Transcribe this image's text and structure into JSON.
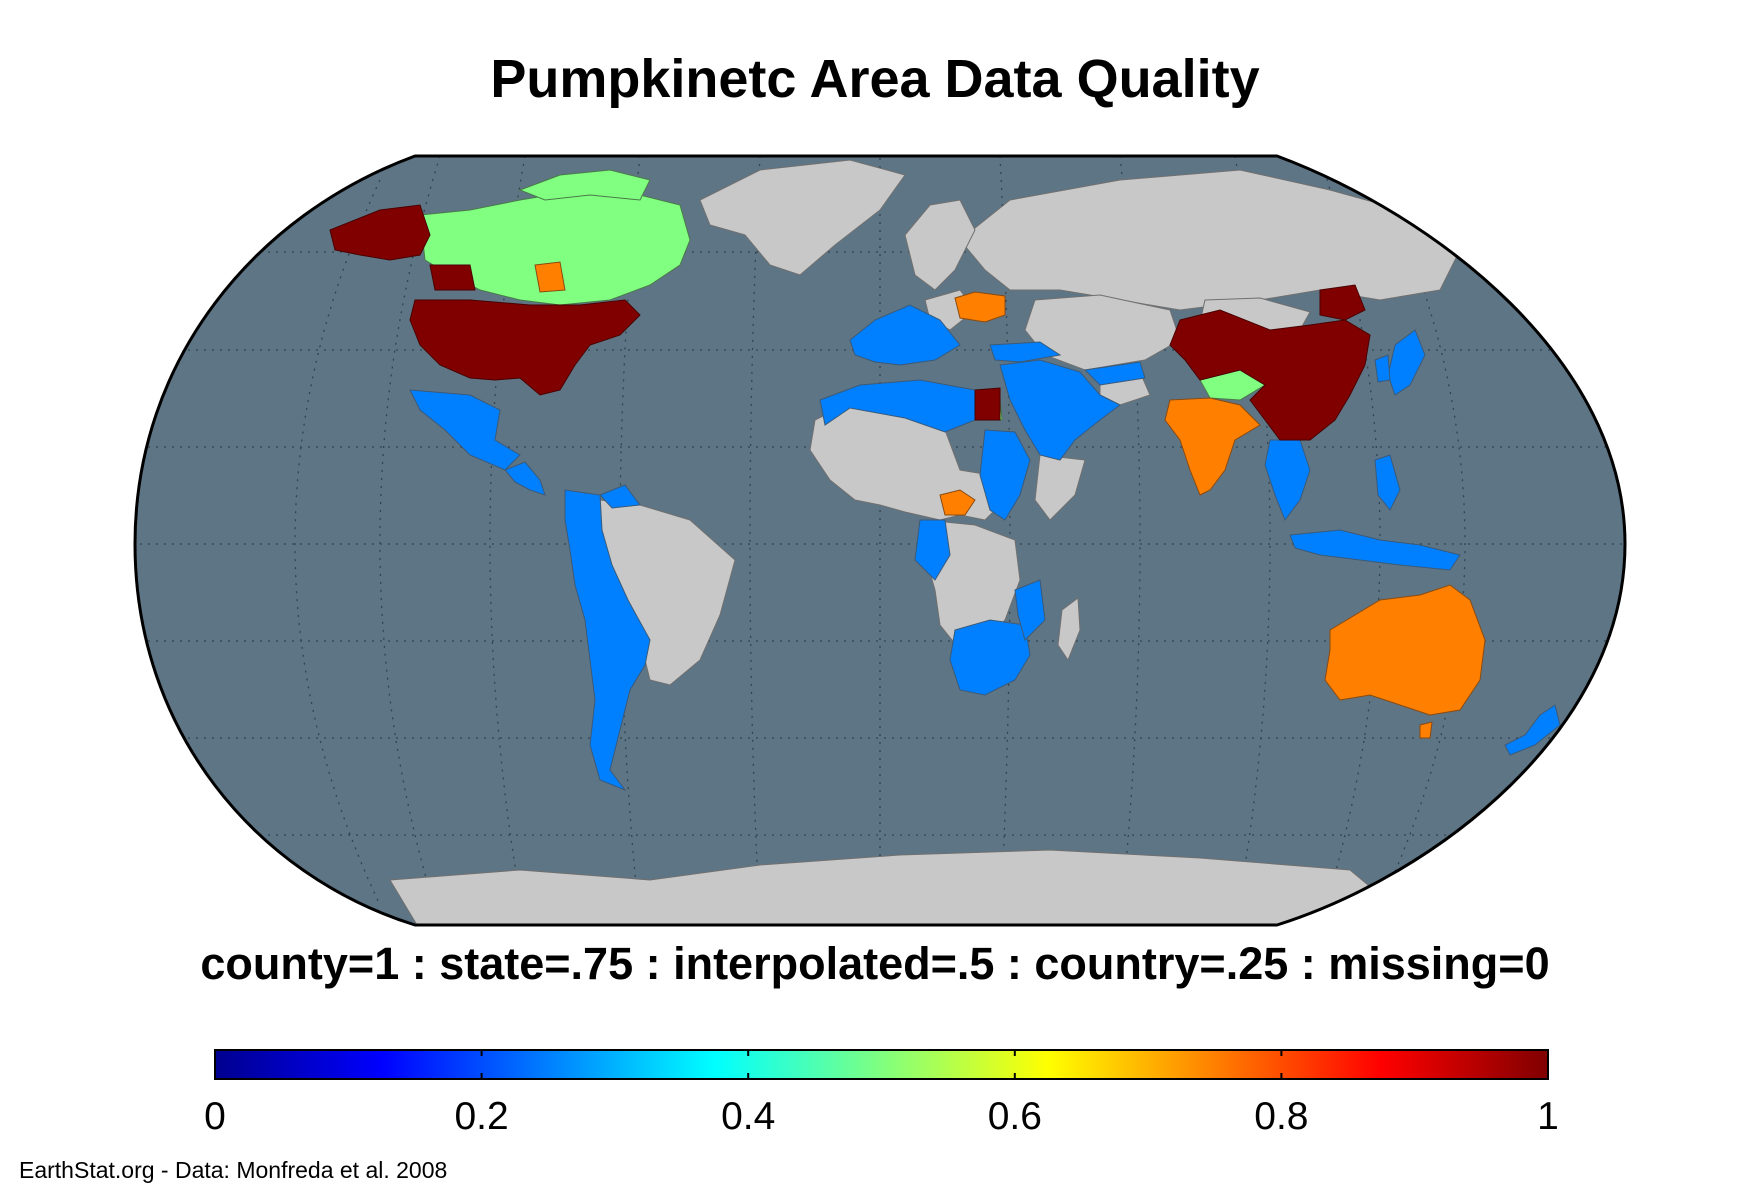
{
  "title": "Pumpkinetc Area Data Quality",
  "legend_caption": "county=1 : state=.75 : interpolated=.5 : country=.25 : missing=0",
  "credit": "EarthStat.org - Data: Monfreda et al. 2008",
  "colorbar": {
    "colormap": "jet",
    "range": [
      0,
      1
    ],
    "ticks": [
      {
        "value": 0,
        "label": "0"
      },
      {
        "value": 0.2,
        "label": "0.2"
      },
      {
        "value": 0.4,
        "label": "0.4"
      },
      {
        "value": 0.6,
        "label": "0.6"
      },
      {
        "value": 0.8,
        "label": "0.8"
      },
      {
        "value": 1,
        "label": "1"
      }
    ]
  },
  "map": {
    "projection": "Robinson",
    "ocean_color": "#5e7585",
    "missing_land_color": "#c8c8c8",
    "graticule": "dotted",
    "category_colors": {
      "county": "#800000",
      "state": "#ff8000",
      "interpolated": "#80ff80",
      "country": "#0080ff",
      "missing": "#c8c8c8"
    },
    "regions": [
      {
        "name": "Alaska",
        "category": "county"
      },
      {
        "name": "Contiguous United States",
        "category": "county"
      },
      {
        "name": "Canada",
        "category": "interpolated"
      },
      {
        "name": "Mexico",
        "category": "country"
      },
      {
        "name": "Central America",
        "category": "country"
      },
      {
        "name": "Greenland",
        "category": "missing"
      },
      {
        "name": "South America (west and south)",
        "category": "country"
      },
      {
        "name": "South America (Brazil and north)",
        "category": "missing"
      },
      {
        "name": "Western Europe",
        "category": "country"
      },
      {
        "name": "Russia",
        "category": "missing"
      },
      {
        "name": "Ukraine",
        "category": "state"
      },
      {
        "name": "North Africa",
        "category": "country"
      },
      {
        "name": "Egypt",
        "category": "county"
      },
      {
        "name": "Middle East",
        "category": "country"
      },
      {
        "name": "West and Central Africa",
        "category": "missing"
      },
      {
        "name": "Central African Republic",
        "category": "state"
      },
      {
        "name": "Southern Africa",
        "category": "country"
      },
      {
        "name": "Madagascar",
        "category": "missing"
      },
      {
        "name": "China",
        "category": "county"
      },
      {
        "name": "Tibet",
        "category": "interpolated"
      },
      {
        "name": "Mongolia",
        "category": "missing"
      },
      {
        "name": "India",
        "category": "state"
      },
      {
        "name": "Southeast Asia",
        "category": "country"
      },
      {
        "name": "Japan",
        "category": "country"
      },
      {
        "name": "Indonesia",
        "category": "country"
      },
      {
        "name": "Australia",
        "category": "state"
      },
      {
        "name": "New Zealand",
        "category": "country"
      },
      {
        "name": "Antarctica",
        "category": "missing"
      }
    ]
  }
}
